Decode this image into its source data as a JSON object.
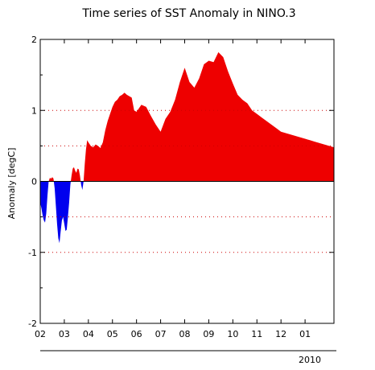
{
  "chart_data": {
    "type": "area",
    "title": "Time series of SST Anomaly in NINO.3",
    "xlabel": "",
    "ylabel": "Anomaly [degC]",
    "ylim": [
      -2,
      2
    ],
    "yticks": [
      -2,
      -1,
      0,
      1,
      2
    ],
    "xticks": [
      "02",
      "03",
      "04",
      "05",
      "06",
      "07",
      "08",
      "09",
      "10",
      "11",
      "12",
      "01"
    ],
    "year_label": "2010",
    "reference_lines": [
      -1,
      -0.5,
      0.5,
      1
    ],
    "colors": {
      "positive": "#ee0000",
      "negative": "#0000ee",
      "reference": "#cc0000"
    },
    "series": [
      {
        "x": [
          0.0,
          0.05,
          0.1,
          0.15,
          0.2,
          0.25,
          0.3,
          0.35,
          0.4,
          0.45,
          0.5,
          0.55,
          0.6,
          0.65,
          0.7,
          0.75,
          0.8,
          0.85,
          0.9,
          0.95,
          1.0,
          1.05,
          1.1,
          1.15,
          1.2,
          1.25,
          1.3,
          1.35,
          1.4,
          1.45,
          1.5,
          1.55,
          1.6,
          1.65,
          1.7,
          1.75,
          1.8,
          1.85,
          1.9,
          1.95,
          2.0,
          2.1,
          2.2,
          2.3,
          2.4,
          2.5,
          2.6,
          2.7,
          2.8,
          2.9,
          3.0,
          3.1,
          3.2,
          3.3,
          3.4,
          3.5,
          3.6,
          3.7,
          3.8,
          3.9,
          4.0,
          4.2,
          4.4,
          4.6,
          4.8,
          5.0,
          5.2,
          5.4,
          5.6,
          5.8,
          6.0,
          6.2,
          6.4,
          6.6,
          6.8,
          7.0,
          7.2,
          7.4,
          7.6,
          7.8,
          8.0,
          8.2,
          8.4,
          8.6,
          8.8,
          9.0,
          9.2,
          9.4,
          9.6,
          9.8,
          10.0,
          10.2,
          10.4,
          10.6,
          10.8,
          11.0,
          11.2,
          11.4,
          11.6,
          11.8,
          12.0,
          12.2
        ],
        "values": [
          -0.3,
          -0.38,
          -0.48,
          -0.55,
          -0.58,
          -0.45,
          -0.2,
          0.0,
          0.05,
          0.04,
          0.06,
          0.04,
          -0.1,
          -0.35,
          -0.6,
          -0.8,
          -0.87,
          -0.7,
          -0.55,
          -0.5,
          -0.6,
          -0.7,
          -0.68,
          -0.5,
          -0.3,
          -0.05,
          0.08,
          0.18,
          0.2,
          0.15,
          0.12,
          0.18,
          0.17,
          0.08,
          -0.05,
          -0.12,
          0.0,
          0.25,
          0.45,
          0.58,
          0.55,
          0.5,
          0.48,
          0.52,
          0.5,
          0.47,
          0.55,
          0.72,
          0.85,
          0.95,
          1.05,
          1.12,
          1.15,
          1.2,
          1.22,
          1.25,
          1.22,
          1.2,
          1.18,
          1.0,
          0.98,
          1.08,
          1.05,
          0.92,
          0.8,
          0.7,
          0.88,
          0.98,
          1.15,
          1.4,
          1.6,
          1.4,
          1.32,
          1.45,
          1.65,
          1.7,
          1.68,
          1.82,
          1.75,
          1.55,
          1.38,
          1.22,
          1.15,
          1.1,
          1.0,
          0.95,
          0.9,
          0.85,
          0.8,
          0.75,
          0.7,
          0.68,
          0.66,
          0.64,
          0.62,
          0.6,
          0.58,
          0.56,
          0.54,
          0.52,
          0.5,
          0.48
        ]
      }
    ]
  }
}
